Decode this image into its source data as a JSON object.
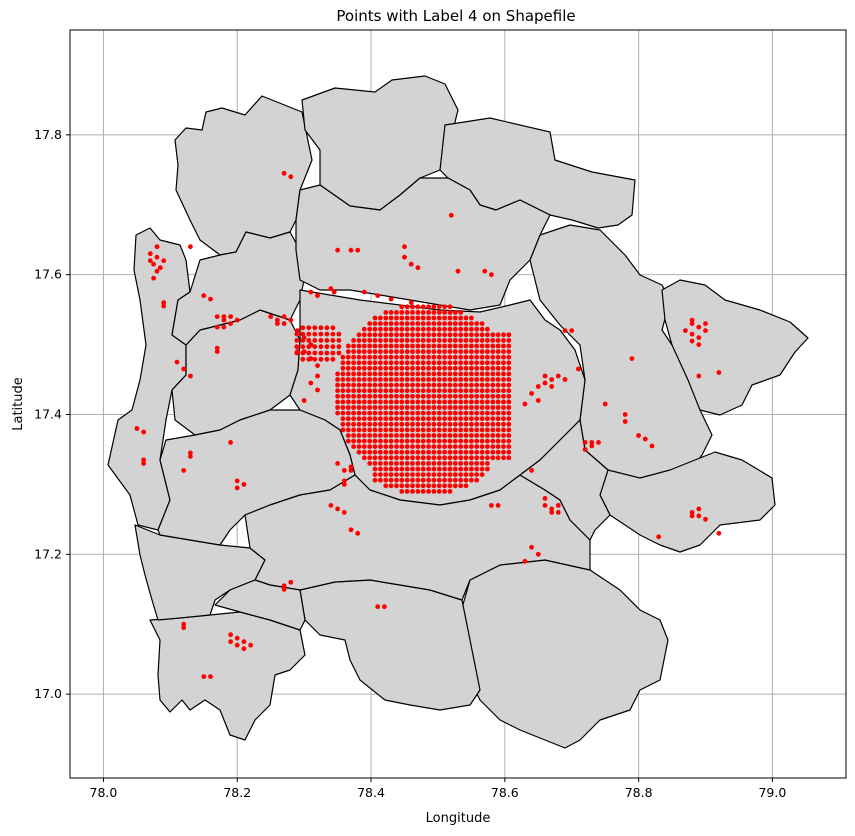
{
  "chart_data": {
    "type": "scatter",
    "title": "Points with Label 4 on Shapefile",
    "xlabel": "Longitude",
    "ylabel": "Latitude",
    "xlim": [
      77.95,
      79.11
    ],
    "ylim": [
      16.88,
      17.95
    ],
    "xticks": [
      78.0,
      78.2,
      78.4,
      78.6,
      78.8,
      79.0
    ],
    "yticks": [
      17.0,
      17.2,
      17.4,
      17.6,
      17.8
    ],
    "xtick_labels": [
      "78.0",
      "78.2",
      "78.4",
      "78.6",
      "78.8",
      "79.0"
    ],
    "ytick_labels": [
      "17.0",
      "17.2",
      "17.4",
      "17.6",
      "17.8"
    ],
    "grid": true,
    "background_fill": "#d3d3d3",
    "boundary_color": "#000000",
    "point_color": "#ff0000",
    "dense_cluster": {
      "x_range": [
        78.35,
        78.61
      ],
      "y_range": [
        17.29,
        17.56
      ],
      "spacing": 0.008
    },
    "points": [
      [
        78.27,
        17.745
      ],
      [
        78.28,
        17.74
      ],
      [
        78.52,
        17.685
      ],
      [
        78.07,
        17.63
      ],
      [
        78.08,
        17.625
      ],
      [
        78.075,
        17.615
      ],
      [
        78.085,
        17.61
      ],
      [
        78.07,
        17.62
      ],
      [
        78.08,
        17.605
      ],
      [
        78.075,
        17.595
      ],
      [
        78.09,
        17.62
      ],
      [
        78.08,
        17.64
      ],
      [
        78.13,
        17.64
      ],
      [
        78.35,
        17.635
      ],
      [
        78.37,
        17.635
      ],
      [
        78.38,
        17.635
      ],
      [
        78.45,
        17.64
      ],
      [
        78.45,
        17.625
      ],
      [
        78.46,
        17.615
      ],
      [
        78.47,
        17.61
      ],
      [
        78.57,
        17.605
      ],
      [
        78.58,
        17.6
      ],
      [
        78.53,
        17.605
      ],
      [
        78.34,
        17.58
      ],
      [
        78.345,
        17.575
      ],
      [
        78.39,
        17.575
      ],
      [
        78.41,
        17.57
      ],
      [
        78.43,
        17.565
      ],
      [
        78.46,
        17.56
      ],
      [
        78.09,
        17.555
      ],
      [
        78.09,
        17.56
      ],
      [
        78.15,
        17.57
      ],
      [
        78.16,
        17.565
      ],
      [
        78.17,
        17.54
      ],
      [
        78.18,
        17.535
      ],
      [
        78.19,
        17.53
      ],
      [
        78.17,
        17.525
      ],
      [
        78.18,
        17.54
      ],
      [
        78.2,
        17.535
      ],
      [
        78.18,
        17.525
      ],
      [
        78.19,
        17.54
      ],
      [
        78.17,
        17.495
      ],
      [
        78.17,
        17.49
      ],
      [
        78.25,
        17.54
      ],
      [
        78.26,
        17.535
      ],
      [
        78.27,
        17.54
      ],
      [
        78.28,
        17.535
      ],
      [
        78.26,
        17.53
      ],
      [
        78.27,
        17.53
      ],
      [
        78.29,
        17.52
      ],
      [
        78.3,
        17.51
      ],
      [
        78.31,
        17.5
      ],
      [
        78.3,
        17.49
      ],
      [
        78.31,
        17.48
      ],
      [
        78.32,
        17.47
      ],
      [
        78.29,
        17.49
      ],
      [
        78.32,
        17.455
      ],
      [
        78.31,
        17.445
      ],
      [
        78.32,
        17.435
      ],
      [
        78.3,
        17.42
      ],
      [
        78.31,
        17.575
      ],
      [
        78.32,
        17.57
      ],
      [
        78.11,
        17.475
      ],
      [
        78.12,
        17.465
      ],
      [
        78.13,
        17.455
      ],
      [
        78.88,
        17.53
      ],
      [
        78.89,
        17.525
      ],
      [
        78.9,
        17.52
      ],
      [
        78.88,
        17.515
      ],
      [
        78.87,
        17.52
      ],
      [
        78.89,
        17.51
      ],
      [
        78.88,
        17.535
      ],
      [
        78.9,
        17.53
      ],
      [
        78.88,
        17.505
      ],
      [
        78.89,
        17.5
      ],
      [
        78.69,
        17.52
      ],
      [
        78.7,
        17.52
      ],
      [
        78.79,
        17.48
      ],
      [
        78.66,
        17.455
      ],
      [
        78.67,
        17.45
      ],
      [
        78.68,
        17.455
      ],
      [
        78.69,
        17.45
      ],
      [
        78.65,
        17.44
      ],
      [
        78.66,
        17.445
      ],
      [
        78.67,
        17.44
      ],
      [
        78.64,
        17.43
      ],
      [
        78.65,
        17.42
      ],
      [
        78.63,
        17.415
      ],
      [
        78.71,
        17.465
      ],
      [
        78.75,
        17.415
      ],
      [
        78.89,
        17.455
      ],
      [
        78.92,
        17.46
      ],
      [
        78.72,
        17.36
      ],
      [
        78.73,
        17.355
      ],
      [
        78.74,
        17.36
      ],
      [
        78.72,
        17.35
      ],
      [
        78.73,
        17.36
      ],
      [
        78.78,
        17.39
      ],
      [
        78.78,
        17.4
      ],
      [
        78.8,
        17.37
      ],
      [
        78.81,
        17.365
      ],
      [
        78.82,
        17.355
      ],
      [
        78.05,
        17.38
      ],
      [
        78.06,
        17.375
      ],
      [
        78.06,
        17.335
      ],
      [
        78.06,
        17.33
      ],
      [
        78.13,
        17.345
      ],
      [
        78.13,
        17.34
      ],
      [
        78.12,
        17.32
      ],
      [
        78.19,
        17.36
      ],
      [
        78.2,
        17.305
      ],
      [
        78.21,
        17.3
      ],
      [
        78.2,
        17.295
      ],
      [
        78.36,
        17.305
      ],
      [
        78.36,
        17.32
      ],
      [
        78.37,
        17.325
      ],
      [
        78.35,
        17.33
      ],
      [
        78.36,
        17.3
      ],
      [
        78.37,
        17.32
      ],
      [
        78.34,
        17.27
      ],
      [
        78.35,
        17.265
      ],
      [
        78.36,
        17.26
      ],
      [
        78.37,
        17.235
      ],
      [
        78.38,
        17.23
      ],
      [
        78.58,
        17.27
      ],
      [
        78.59,
        17.27
      ],
      [
        78.64,
        17.32
      ],
      [
        78.66,
        17.27
      ],
      [
        78.67,
        17.265
      ],
      [
        78.68,
        17.27
      ],
      [
        78.67,
        17.26
      ],
      [
        78.68,
        17.26
      ],
      [
        78.66,
        17.28
      ],
      [
        78.64,
        17.21
      ],
      [
        78.65,
        17.2
      ],
      [
        78.63,
        17.19
      ],
      [
        78.88,
        17.26
      ],
      [
        78.89,
        17.255
      ],
      [
        78.9,
        17.25
      ],
      [
        78.89,
        17.265
      ],
      [
        78.88,
        17.255
      ],
      [
        78.92,
        17.23
      ],
      [
        78.83,
        17.225
      ],
      [
        78.28,
        17.16
      ],
      [
        78.27,
        17.155
      ],
      [
        78.27,
        17.15
      ],
      [
        78.41,
        17.125
      ],
      [
        78.42,
        17.125
      ],
      [
        78.12,
        17.1
      ],
      [
        78.12,
        17.095
      ],
      [
        78.19,
        17.085
      ],
      [
        78.2,
        17.08
      ],
      [
        78.21,
        17.075
      ],
      [
        78.19,
        17.075
      ],
      [
        78.2,
        17.07
      ],
      [
        78.21,
        17.065
      ],
      [
        78.22,
        17.07
      ],
      [
        78.15,
        17.025
      ],
      [
        78.16,
        17.025
      ]
    ]
  }
}
